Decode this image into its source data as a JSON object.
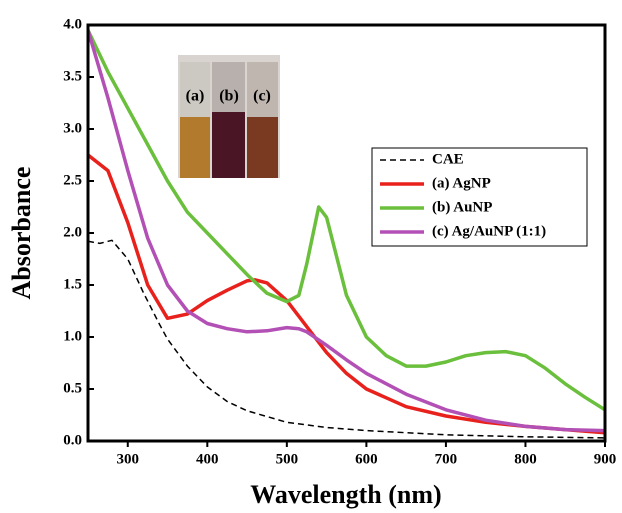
{
  "chart_data": {
    "type": "line",
    "x_label": "Wavelength (nm)",
    "y_label": "Absorbance",
    "xlim": [
      250,
      900
    ],
    "ylim": [
      0,
      4.0
    ],
    "xticks": [
      300,
      400,
      500,
      600,
      700,
      800,
      900
    ],
    "yticks": [
      {
        "value": 0,
        "label": "0.0"
      },
      {
        "value": 0.5,
        "label": "0.5"
      },
      {
        "value": 1,
        "label": "1.0"
      },
      {
        "value": 1.5,
        "label": "1.5"
      },
      {
        "value": 2,
        "label": "2.0"
      },
      {
        "value": 2.5,
        "label": "2.5"
      },
      {
        "value": 3,
        "label": "3.0"
      },
      {
        "value": 3.5,
        "label": "3.5"
      },
      {
        "value": 4,
        "label": "4.0"
      }
    ],
    "legend": "upper right",
    "inset_labels": [
      "(a)",
      "(b)",
      "(c)"
    ],
    "series": [
      {
        "name": "CAE",
        "color": "#000000",
        "dash": true,
        "x": [
          250,
          265,
          280,
          300,
          320,
          340,
          350,
          375,
          400,
          425,
          450,
          500,
          550,
          600,
          700,
          800,
          900
        ],
        "values": [
          1.92,
          1.9,
          1.93,
          1.75,
          1.42,
          1.12,
          0.98,
          0.72,
          0.52,
          0.38,
          0.29,
          0.18,
          0.13,
          0.1,
          0.06,
          0.04,
          0.03
        ]
      },
      {
        "name": "(a) AgNP",
        "color": "#e8211d",
        "dash": false,
        "x": [
          250,
          275,
          300,
          325,
          350,
          375,
          400,
          425,
          450,
          460,
          475,
          500,
          525,
          550,
          575,
          600,
          650,
          700,
          750,
          800,
          850,
          900
        ],
        "values": [
          2.75,
          2.6,
          2.1,
          1.5,
          1.18,
          1.22,
          1.35,
          1.45,
          1.54,
          1.55,
          1.52,
          1.35,
          1.1,
          0.85,
          0.65,
          0.5,
          0.33,
          0.24,
          0.18,
          0.14,
          0.11,
          0.08
        ]
      },
      {
        "name": "(b) AuNP",
        "color": "#6abf3c",
        "dash": false,
        "x": [
          250,
          275,
          300,
          325,
          350,
          375,
          400,
          425,
          450,
          475,
          500,
          515,
          525,
          540,
          550,
          575,
          600,
          625,
          650,
          675,
          700,
          725,
          750,
          775,
          800,
          825,
          850,
          875,
          900
        ],
        "values": [
          3.95,
          3.55,
          3.2,
          2.85,
          2.5,
          2.2,
          2.0,
          1.8,
          1.6,
          1.42,
          1.34,
          1.4,
          1.7,
          2.25,
          2.15,
          1.4,
          1.0,
          0.82,
          0.72,
          0.72,
          0.76,
          0.82,
          0.85,
          0.86,
          0.82,
          0.7,
          0.55,
          0.42,
          0.3
        ]
      },
      {
        "name": "(c) Ag/AuNP (1:1)",
        "color": "#b350b5",
        "dash": false,
        "x": [
          250,
          275,
          300,
          325,
          350,
          375,
          400,
          425,
          450,
          475,
          500,
          515,
          525,
          550,
          575,
          600,
          650,
          700,
          750,
          800,
          850,
          900
        ],
        "values": [
          3.95,
          3.3,
          2.6,
          1.95,
          1.5,
          1.25,
          1.13,
          1.08,
          1.05,
          1.06,
          1.09,
          1.08,
          1.05,
          0.92,
          0.78,
          0.65,
          0.45,
          0.3,
          0.2,
          0.14,
          0.11,
          0.1
        ]
      }
    ]
  }
}
